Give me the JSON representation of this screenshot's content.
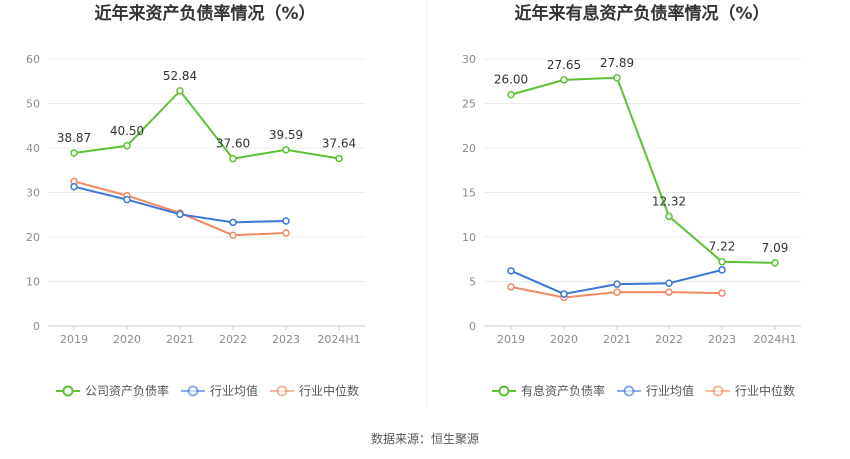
{
  "chart_data": [
    {
      "type": "line",
      "title": "近年来资产负债率情况（%）",
      "categories": [
        "2019",
        "2020",
        "2021",
        "2022",
        "2023",
        "2024H1"
      ],
      "ylim": [
        0,
        60
      ],
      "yticks": [
        0,
        10,
        20,
        30,
        40,
        50,
        60
      ],
      "grid": true,
      "legend_position": "bottom",
      "series": [
        {
          "name": "公司资产负债率",
          "color": "#5cc234",
          "values": [
            38.87,
            40.5,
            52.84,
            37.6,
            39.59,
            37.64
          ],
          "labels": [
            "38.87",
            "40.50",
            "52.84",
            "37.60",
            "39.59",
            "37.64"
          ]
        },
        {
          "name": "行业均值",
          "color": "#3e76d8",
          "values": [
            31.3,
            28.4,
            25.1,
            23.3,
            23.6,
            null
          ]
        },
        {
          "name": "行业中位数",
          "color": "#f08a64",
          "values": [
            32.5,
            29.3,
            25.4,
            20.4,
            20.9,
            null
          ]
        }
      ]
    },
    {
      "type": "line",
      "title": "近年来有息资产负债率情况（%）",
      "categories": [
        "2019",
        "2020",
        "2021",
        "2022",
        "2023",
        "2024H1"
      ],
      "ylim": [
        0,
        30
      ],
      "yticks": [
        0,
        5,
        10,
        15,
        20,
        25,
        30
      ],
      "grid": true,
      "legend_position": "bottom",
      "series": [
        {
          "name": "有息资产负债率",
          "color": "#5cc234",
          "values": [
            26.0,
            27.65,
            27.89,
            12.32,
            7.22,
            7.09
          ],
          "labels": [
            "26.00",
            "27.65",
            "27.89",
            "12.32",
            "7.22",
            "7.09"
          ]
        },
        {
          "name": "行业均值",
          "color": "#3e76d8",
          "values": [
            6.2,
            3.6,
            4.7,
            4.8,
            6.3,
            null
          ]
        },
        {
          "name": "行业中位数",
          "color": "#f08a64",
          "values": [
            4.4,
            3.2,
            3.8,
            3.8,
            3.7,
            null
          ]
        }
      ]
    }
  ],
  "footer": {
    "source": "数据来源：恒生聚源"
  }
}
